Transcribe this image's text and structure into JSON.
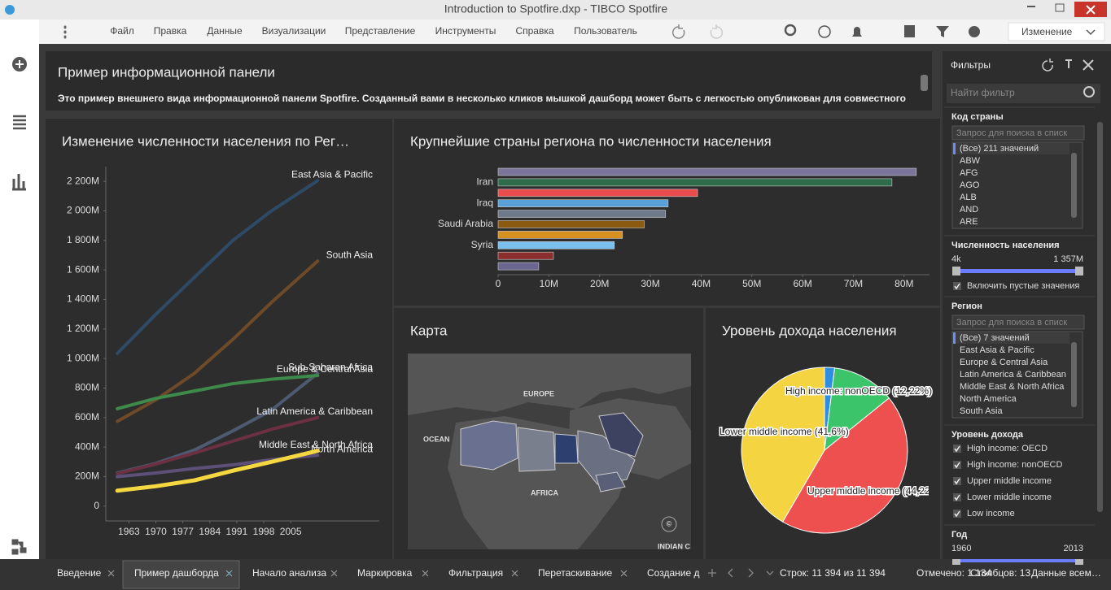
{
  "window": {
    "title": "Introduction to Spotfire.dxp - TIBCO Spotfire"
  },
  "menu": {
    "items": [
      "Файл",
      "Правка",
      "Данные",
      "Визуализации",
      "Представление",
      "Инструменты",
      "Справка",
      "Пользователь"
    ],
    "mode": "Изменение"
  },
  "page": {
    "title": "Пример информационной панели",
    "description": "Это пример внешнего вида информационной панели Spotfire. Созданный вами в несколько кликов мышкой дашборд может быть с легкостью опубликован для совместного"
  },
  "chart_data": [
    {
      "type": "line",
      "title": "Изменение численности населения по Рег…",
      "x": [
        1960,
        1970,
        1980,
        1990,
        2000,
        2012
      ],
      "series": [
        {
          "name": "East Asia & Pacific",
          "color": "#2f4a66",
          "values": [
            1035000000,
            1300000000,
            1550000000,
            1800000000,
            2000000000,
            2205000000
          ]
        },
        {
          "name": "South Asia",
          "color": "#6e4a28",
          "values": [
            575000000,
            720000000,
            900000000,
            1130000000,
            1380000000,
            1660000000
          ]
        },
        {
          "name": "Sub-Saharan Africa",
          "color": "#4d5a70",
          "values": [
            225000000,
            290000000,
            380000000,
            510000000,
            650000000,
            900000000
          ]
        },
        {
          "name": "Europe & Central Asia",
          "color": "#3d8a4a",
          "values": [
            660000000,
            730000000,
            780000000,
            830000000,
            860000000,
            885000000
          ]
        },
        {
          "name": "Latin America & Caribbean",
          "color": "#6b3042",
          "values": [
            220000000,
            285000000,
            360000000,
            440000000,
            520000000,
            600000000
          ]
        },
        {
          "name": "North America",
          "color": "#5c5078",
          "values": [
            200000000,
            225000000,
            255000000,
            280000000,
            315000000,
            345000000
          ]
        },
        {
          "name": "Middle East & North Africa",
          "color": "#f5d742",
          "values": [
            105000000,
            135000000,
            175000000,
            240000000,
            300000000,
            375000000
          ]
        }
      ],
      "xlim": [
        1957,
        2028
      ],
      "xticks": [
        1963,
        1970,
        1977,
        1984,
        1991,
        1998,
        2005
      ],
      "ylim": [
        -100000000,
        2300000000
      ],
      "yticks": [
        0,
        {
          "value": 200000000,
          "label": "200M"
        },
        {
          "value": 400000000,
          "label": "400M"
        },
        {
          "value": 600000000,
          "label": "600M"
        },
        {
          "value": 800000000,
          "label": "800M"
        },
        {
          "value": 1000000000,
          "label": "1 000M"
        },
        {
          "value": 1200000000,
          "label": "1 200M"
        },
        {
          "value": 1400000000,
          "label": "1 400M"
        },
        {
          "value": 1600000000,
          "label": "1 600M"
        },
        {
          "value": 1800000000,
          "label": "1 800M"
        },
        {
          "value": 2000000000,
          "label": "2 000M"
        },
        {
          "value": 2200000000,
          "label": "2 200M"
        }
      ]
    },
    {
      "type": "barh",
      "title": "Крупнейшие страны региона по численности населения",
      "categories": [
        null,
        "Iran",
        null,
        "Iraq",
        null,
        "Saudi Arabia",
        null,
        "Syria",
        null,
        null
      ],
      "values": [
        82400000,
        77600000,
        39300000,
        33500000,
        33000000,
        28800000,
        24500000,
        22900000,
        10900000,
        8000000
      ],
      "colors": [
        "#7b7699",
        "#2e6b4a",
        "#e84c4c",
        "#5aa0d8",
        "#6e7a8a",
        "#8a5a10",
        "#d89020",
        "#7ac0ef",
        "#8b2e2e",
        "#6a6690"
      ],
      "xlim": [
        0,
        85000000
      ],
      "xticks": [
        0,
        {
          "value": 10000000,
          "label": "10M"
        },
        {
          "value": 20000000,
          "label": "20M"
        },
        {
          "value": 30000000,
          "label": "30M"
        },
        {
          "value": 40000000,
          "label": "40M"
        },
        {
          "value": 50000000,
          "label": "50M"
        },
        {
          "value": 60000000,
          "label": "60M"
        },
        {
          "value": 70000000,
          "label": "70M"
        },
        {
          "value": 80000000,
          "label": "80M"
        }
      ]
    },
    {
      "type": "pie",
      "title": "Уровень дохода населения",
      "categories": [
        "High income: OECD",
        "High income: nonOECD",
        "Upper middle income",
        "Lower middle income"
      ],
      "values": [
        1.96,
        12.22,
        44.22,
        41.6
      ],
      "value_labels": [
        null,
        "High income: nonOECD (12,22%)",
        "Upper middle income (44,22",
        "Lower middle income (41,6%)"
      ],
      "colors": [
        "#2f8ee0",
        "#3cc46a",
        "#ee4f4f",
        "#f5d442"
      ]
    }
  ],
  "map": {
    "title": "Карта",
    "labels": [
      "EUROPE",
      "OCEAN",
      "AFRICA",
      "INDIAN C",
      "©"
    ]
  },
  "filters": {
    "title": "Фильтры",
    "search": "Найти фильтр",
    "sections": [
      {
        "title": "Код страны",
        "search": "Запрос для поиска в списк",
        "items": [
          "(Все) 211 значений",
          "ABW",
          "AFG",
          "AGO",
          "ALB",
          "AND",
          "ARE"
        ]
      },
      {
        "title": "Численность населения",
        "min": "4k",
        "max": "1 357M",
        "checkbox": "Включить пустые значения"
      },
      {
        "title": "Регион",
        "search": "Запрос для поиска в списк",
        "items": [
          "(Все) 7 значений",
          "East Asia & Pacific",
          "Europe & Central Asia",
          "Latin America & Caribbean",
          "Middle East & North Africa",
          "North America",
          "South Asia"
        ]
      },
      {
        "title": "Уровень дохода",
        "checks": [
          "High income: OECD",
          "High income: nonOECD",
          "Upper middle income",
          "Lower middle income",
          "Low income"
        ]
      },
      {
        "title": "Год",
        "min": "1960",
        "max": "2013"
      }
    ]
  },
  "tabs": [
    "Введение",
    "Пример дашборда",
    "Начало анализа",
    "Маркировка",
    "Фильтрация",
    "Перетаскивание",
    "Создание д"
  ],
  "status": [
    "Строк: 11 394 из 11 394",
    "Отмечено: 1 134",
    "Столбцов: 13",
    "Данные всем…"
  ]
}
